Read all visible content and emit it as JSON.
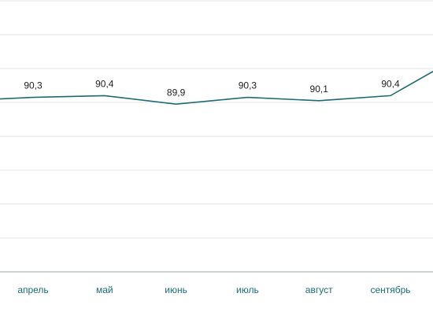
{
  "chart_data": {
    "type": "line",
    "categories": [
      null,
      "апрель",
      "май",
      "июнь",
      "июль",
      "август",
      "сентябрь",
      null
    ],
    "values": [
      90.1,
      90.3,
      90.4,
      89.9,
      90.3,
      90.1,
      90.4,
      92.8
    ],
    "value_labels": [
      null,
      "90,3",
      "90,4",
      "89,9",
      "90,3",
      "90,1",
      "90,4",
      null
    ],
    "color": "#1f6b73",
    "ylim": [
      80,
      96
    ],
    "yticks": [
      80,
      82,
      84,
      86,
      88,
      90,
      92,
      94,
      96
    ],
    "grid": true
  }
}
